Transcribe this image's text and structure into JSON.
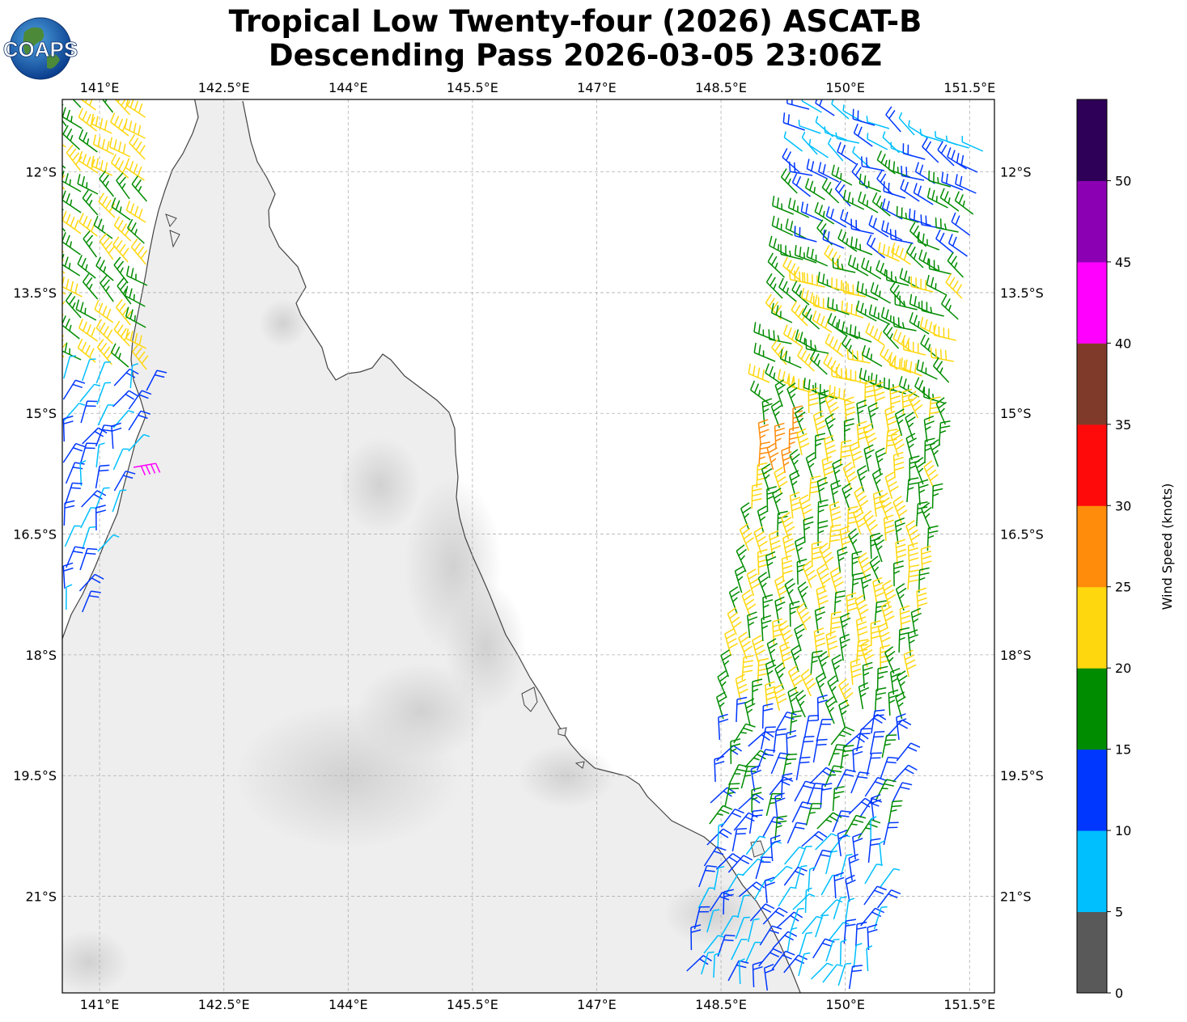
{
  "header": {
    "title_line1": "Tropical Low Twenty-four (2026) ASCAT-B",
    "title_line2": "Descending Pass 2026-03-05 23:06Z",
    "logo_text": "COAPS"
  },
  "map": {
    "lon_labels": [
      "141°E",
      "142.5°E",
      "144°E",
      "145.5°E",
      "147°E",
      "148.5°E",
      "150°E",
      "151.5°E"
    ],
    "lat_labels": [
      "12°S",
      "13.5°S",
      "15°S",
      "16.5°S",
      "18°S",
      "19.5°S",
      "21°S"
    ],
    "lon_range": [
      140.55,
      151.8
    ],
    "lat_range": [
      -22.2,
      -11.1
    ],
    "land_color": "#eeeeee",
    "coast_color": "#444444",
    "grid": "dashed"
  },
  "colorbar": {
    "label": "Wind Speed (knots)",
    "ticks": [
      "0",
      "5",
      "10",
      "15",
      "20",
      "25",
      "30",
      "35",
      "40",
      "45",
      "50"
    ],
    "bins": [
      {
        "range": "0-5",
        "color": "#595959"
      },
      {
        "range": "5-10",
        "color": "#00bfff"
      },
      {
        "range": "10-15",
        "color": "#0037ff"
      },
      {
        "range": "15-20",
        "color": "#008c00"
      },
      {
        "range": "20-25",
        "color": "#ffd70f"
      },
      {
        "range": "25-30",
        "color": "#ff8c0a"
      },
      {
        "range": "30-35",
        "color": "#ff0a0a"
      },
      {
        "range": "35-40",
        "color": "#803a29"
      },
      {
        "range": "40-45",
        "color": "#ff00ff"
      },
      {
        "range": "45-50",
        "color": "#8c00b4"
      },
      {
        "range": "50+",
        "color": "#2e0057"
      }
    ]
  }
}
